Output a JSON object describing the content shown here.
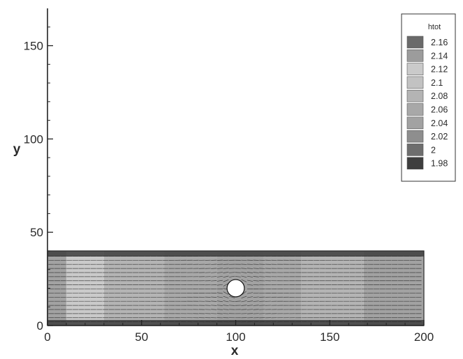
{
  "chart_data": {
    "type": "heatmap",
    "title": "",
    "xlabel": "x",
    "ylabel": "y",
    "xlim": [
      0,
      200
    ],
    "ylim": [
      0,
      170
    ],
    "xticks": [
      0,
      50,
      100,
      150,
      200
    ],
    "yticks": [
      0,
      50,
      100,
      150
    ],
    "variable": "htot",
    "domain": {
      "x": [
        0,
        200
      ],
      "y": [
        0,
        40
      ]
    },
    "obstacle": {
      "shape": "circle",
      "center": [
        100,
        20
      ],
      "radius": 4
    },
    "legend": {
      "title": "htot",
      "position": "top-right",
      "levels": [
        2.16,
        2.14,
        2.12,
        2.1,
        2.08,
        2.06,
        2.04,
        2.02,
        2,
        1.98
      ],
      "level_labels": [
        "2.16",
        "2.14",
        "2.12",
        "2.1",
        "2.08",
        "2.06",
        "2.04",
        "2.02",
        "2",
        "1.98"
      ],
      "colors": [
        "#6a6a6a",
        "#9c9c9c",
        "#cacaca",
        "#c2c2c2",
        "#b4b4b4",
        "#a8a8a8",
        "#a2a2a2",
        "#8e8e8e",
        "#6e6e6e",
        "#3e3e3e"
      ]
    },
    "regions": [
      {
        "x": [
          0,
          10
        ],
        "y": [
          0,
          40
        ],
        "level": 2.04
      },
      {
        "x": [
          10,
          30
        ],
        "y": [
          0,
          40
        ],
        "level": 2.12
      },
      {
        "x": [
          30,
          62
        ],
        "y": [
          0,
          40
        ],
        "level": 2.08
      },
      {
        "x": [
          62,
          90
        ],
        "y": [
          0,
          40
        ],
        "level": 2.06
      },
      {
        "x": [
          90,
          115
        ],
        "y": [
          0,
          40
        ],
        "level": 2.04
      },
      {
        "x": [
          115,
          135
        ],
        "y": [
          0,
          40
        ],
        "level": 2.06
      },
      {
        "x": [
          135,
          168
        ],
        "y": [
          0,
          40
        ],
        "level": 2.08
      },
      {
        "x": [
          168,
          200
        ],
        "y": [
          0,
          40
        ],
        "level": 2.04
      }
    ],
    "wall_bands": [
      {
        "y": [
          37,
          40
        ],
        "level": 1.98
      },
      {
        "y": [
          0,
          3
        ],
        "level": 1.98
      }
    ],
    "vectors": "flow streamlines converging toward and diverging around the cylinder"
  }
}
